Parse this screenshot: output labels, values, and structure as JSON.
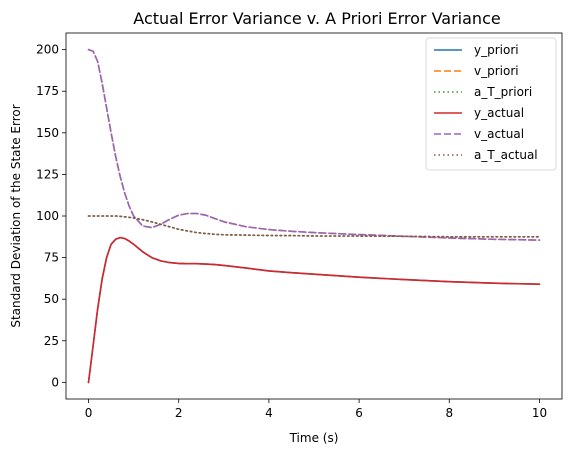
{
  "chart_data": {
    "type": "line",
    "title": "Actual Error Variance v. A Priori Error Variance",
    "xlabel": "Time (s)",
    "ylabel": "Standard Deviation of the State Error",
    "xlim": [
      -0.5,
      10.5
    ],
    "ylim": [
      -10,
      210
    ],
    "xticks": [
      0,
      2,
      4,
      6,
      8,
      10
    ],
    "yticks": [
      0,
      25,
      50,
      75,
      100,
      125,
      150,
      175,
      200
    ],
    "grid": false,
    "legend_position": "top-right",
    "x": [
      0,
      0.1,
      0.2,
      0.3,
      0.4,
      0.5,
      0.6,
      0.7,
      0.8,
      0.9,
      1.0,
      1.2,
      1.4,
      1.6,
      1.8,
      2.0,
      2.2,
      2.4,
      2.6,
      2.8,
      3.0,
      3.5,
      4.0,
      4.5,
      5.0,
      6.0,
      7.0,
      8.0,
      9.0,
      10.0
    ],
    "series": [
      {
        "name": "y_priori",
        "color": "#1f77b4",
        "style": "solid",
        "values": [
          0,
          22,
          44,
          62,
          75,
          83,
          86,
          87,
          86.5,
          85,
          83,
          78.5,
          75,
          73,
          72,
          71.5,
          71.3,
          71.3,
          71.1,
          70.8,
          70.3,
          68.7,
          67,
          65.9,
          65,
          63.2,
          61.8,
          60.5,
          59.6,
          59
        ]
      },
      {
        "name": "v_priori",
        "color": "#ff7f0e",
        "style": "dashed",
        "values": [
          200,
          199,
          193,
          180,
          165,
          150,
          136,
          124,
          114,
          106,
          100,
          94,
          93,
          95,
          98,
          100.5,
          101.5,
          101.5,
          100.5,
          98.5,
          96.5,
          93.5,
          91.8,
          90.8,
          90,
          88.8,
          87.8,
          86.8,
          86,
          85.5
        ]
      },
      {
        "name": "a_T_priori",
        "color": "#2ca02c",
        "style": "dotted",
        "values": [
          100,
          100,
          100,
          100,
          100,
          100,
          100,
          99.8,
          99.5,
          99.2,
          98.8,
          97.8,
          96.5,
          95,
          93.5,
          92,
          91,
          90,
          89.5,
          89,
          88.7,
          88.5,
          88.3,
          88.2,
          88,
          88,
          87.8,
          87.5,
          87.5,
          87.5
        ]
      },
      {
        "name": "y_actual",
        "color": "#d62728",
        "style": "solid",
        "values": [
          0,
          22,
          44,
          62,
          75,
          83,
          86,
          87,
          86.5,
          85,
          83,
          78.5,
          75,
          73,
          72,
          71.5,
          71.3,
          71.3,
          71.1,
          70.8,
          70.3,
          68.7,
          67,
          65.9,
          65,
          63.2,
          61.8,
          60.5,
          59.6,
          59
        ]
      },
      {
        "name": "v_actual",
        "color": "#9467bd",
        "style": "dashed",
        "values": [
          200,
          199,
          193,
          180,
          165,
          150,
          136,
          124,
          114,
          106,
          100,
          94,
          93,
          95,
          98,
          100.5,
          101.5,
          101.5,
          100.5,
          98.5,
          96.5,
          93.5,
          91.8,
          90.8,
          90,
          88.8,
          87.8,
          86.8,
          86,
          85.5
        ]
      },
      {
        "name": "a_T_actual",
        "color": "#8c564b",
        "style": "dotted",
        "values": [
          100,
          100,
          100,
          100,
          100,
          100,
          100,
          99.8,
          99.5,
          99.2,
          98.8,
          97.8,
          96.5,
          95,
          93.5,
          92,
          91,
          90,
          89.5,
          89,
          88.7,
          88.5,
          88.3,
          88.2,
          88,
          88,
          87.8,
          87.5,
          87.5,
          87.5
        ]
      }
    ]
  }
}
